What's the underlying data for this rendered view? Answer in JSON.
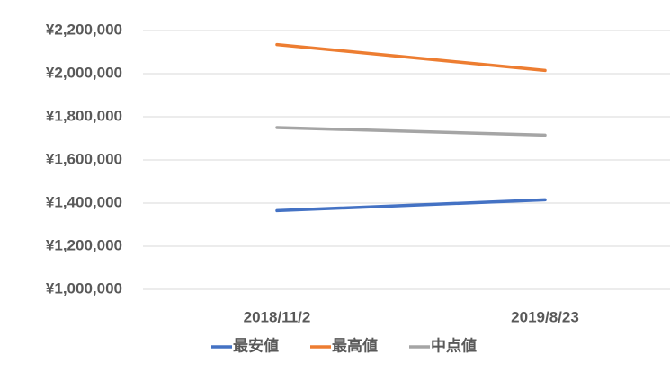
{
  "chart_data": {
    "type": "line",
    "categories": [
      "2018/11/2",
      "2019/8/23"
    ],
    "series": [
      {
        "name": "最安値",
        "color": "#4472c4",
        "values": [
          1365000,
          1415000
        ]
      },
      {
        "name": "最高値",
        "color": "#ed7d31",
        "values": [
          2135000,
          2015000
        ]
      },
      {
        "name": "中点値",
        "color": "#a5a5a5",
        "values": [
          1750000,
          1715000
        ]
      }
    ],
    "ylim": [
      1000000,
      2200000
    ],
    "yticks": [
      {
        "value": 1000000,
        "label": "¥1,000,000"
      },
      {
        "value": 1200000,
        "label": "¥1,200,000"
      },
      {
        "value": 1400000,
        "label": "¥1,400,000"
      },
      {
        "value": 1600000,
        "label": "¥1,600,000"
      },
      {
        "value": 1800000,
        "label": "¥1,800,000"
      },
      {
        "value": 2000000,
        "label": "¥2,000,000"
      },
      {
        "value": 2200000,
        "label": "¥2,200,000"
      }
    ],
    "grid": true,
    "legend": "bottom"
  }
}
